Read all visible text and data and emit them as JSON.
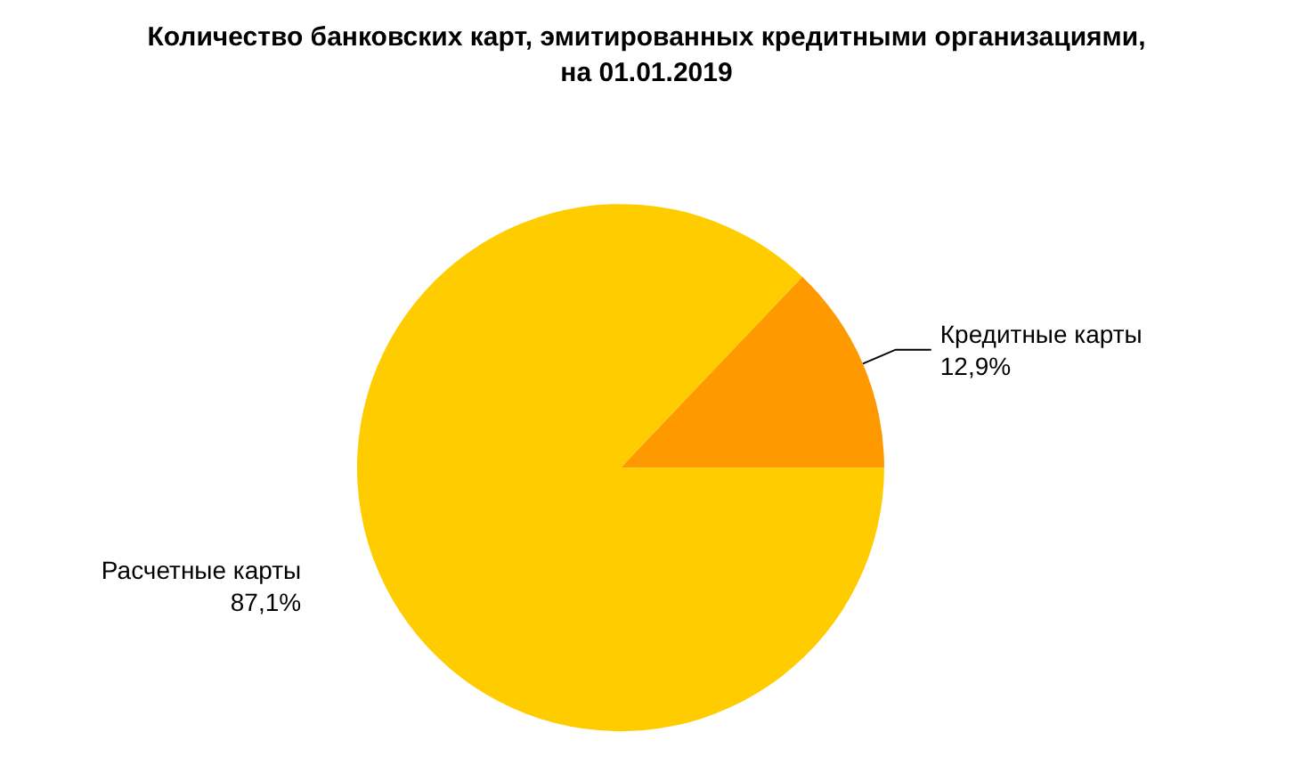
{
  "chart_data": {
    "type": "pie",
    "title": "Количество банковских карт, эмитированных кредитными организациями,\nна 01.01.2019",
    "categories": [
      "Кредитные карты",
      "Расчетные карты"
    ],
    "values": [
      12.9,
      87.1
    ],
    "colors": [
      "#ff9900",
      "#ffcc00"
    ],
    "value_labels": [
      "12,9%",
      "87,1%"
    ],
    "legend": false
  }
}
